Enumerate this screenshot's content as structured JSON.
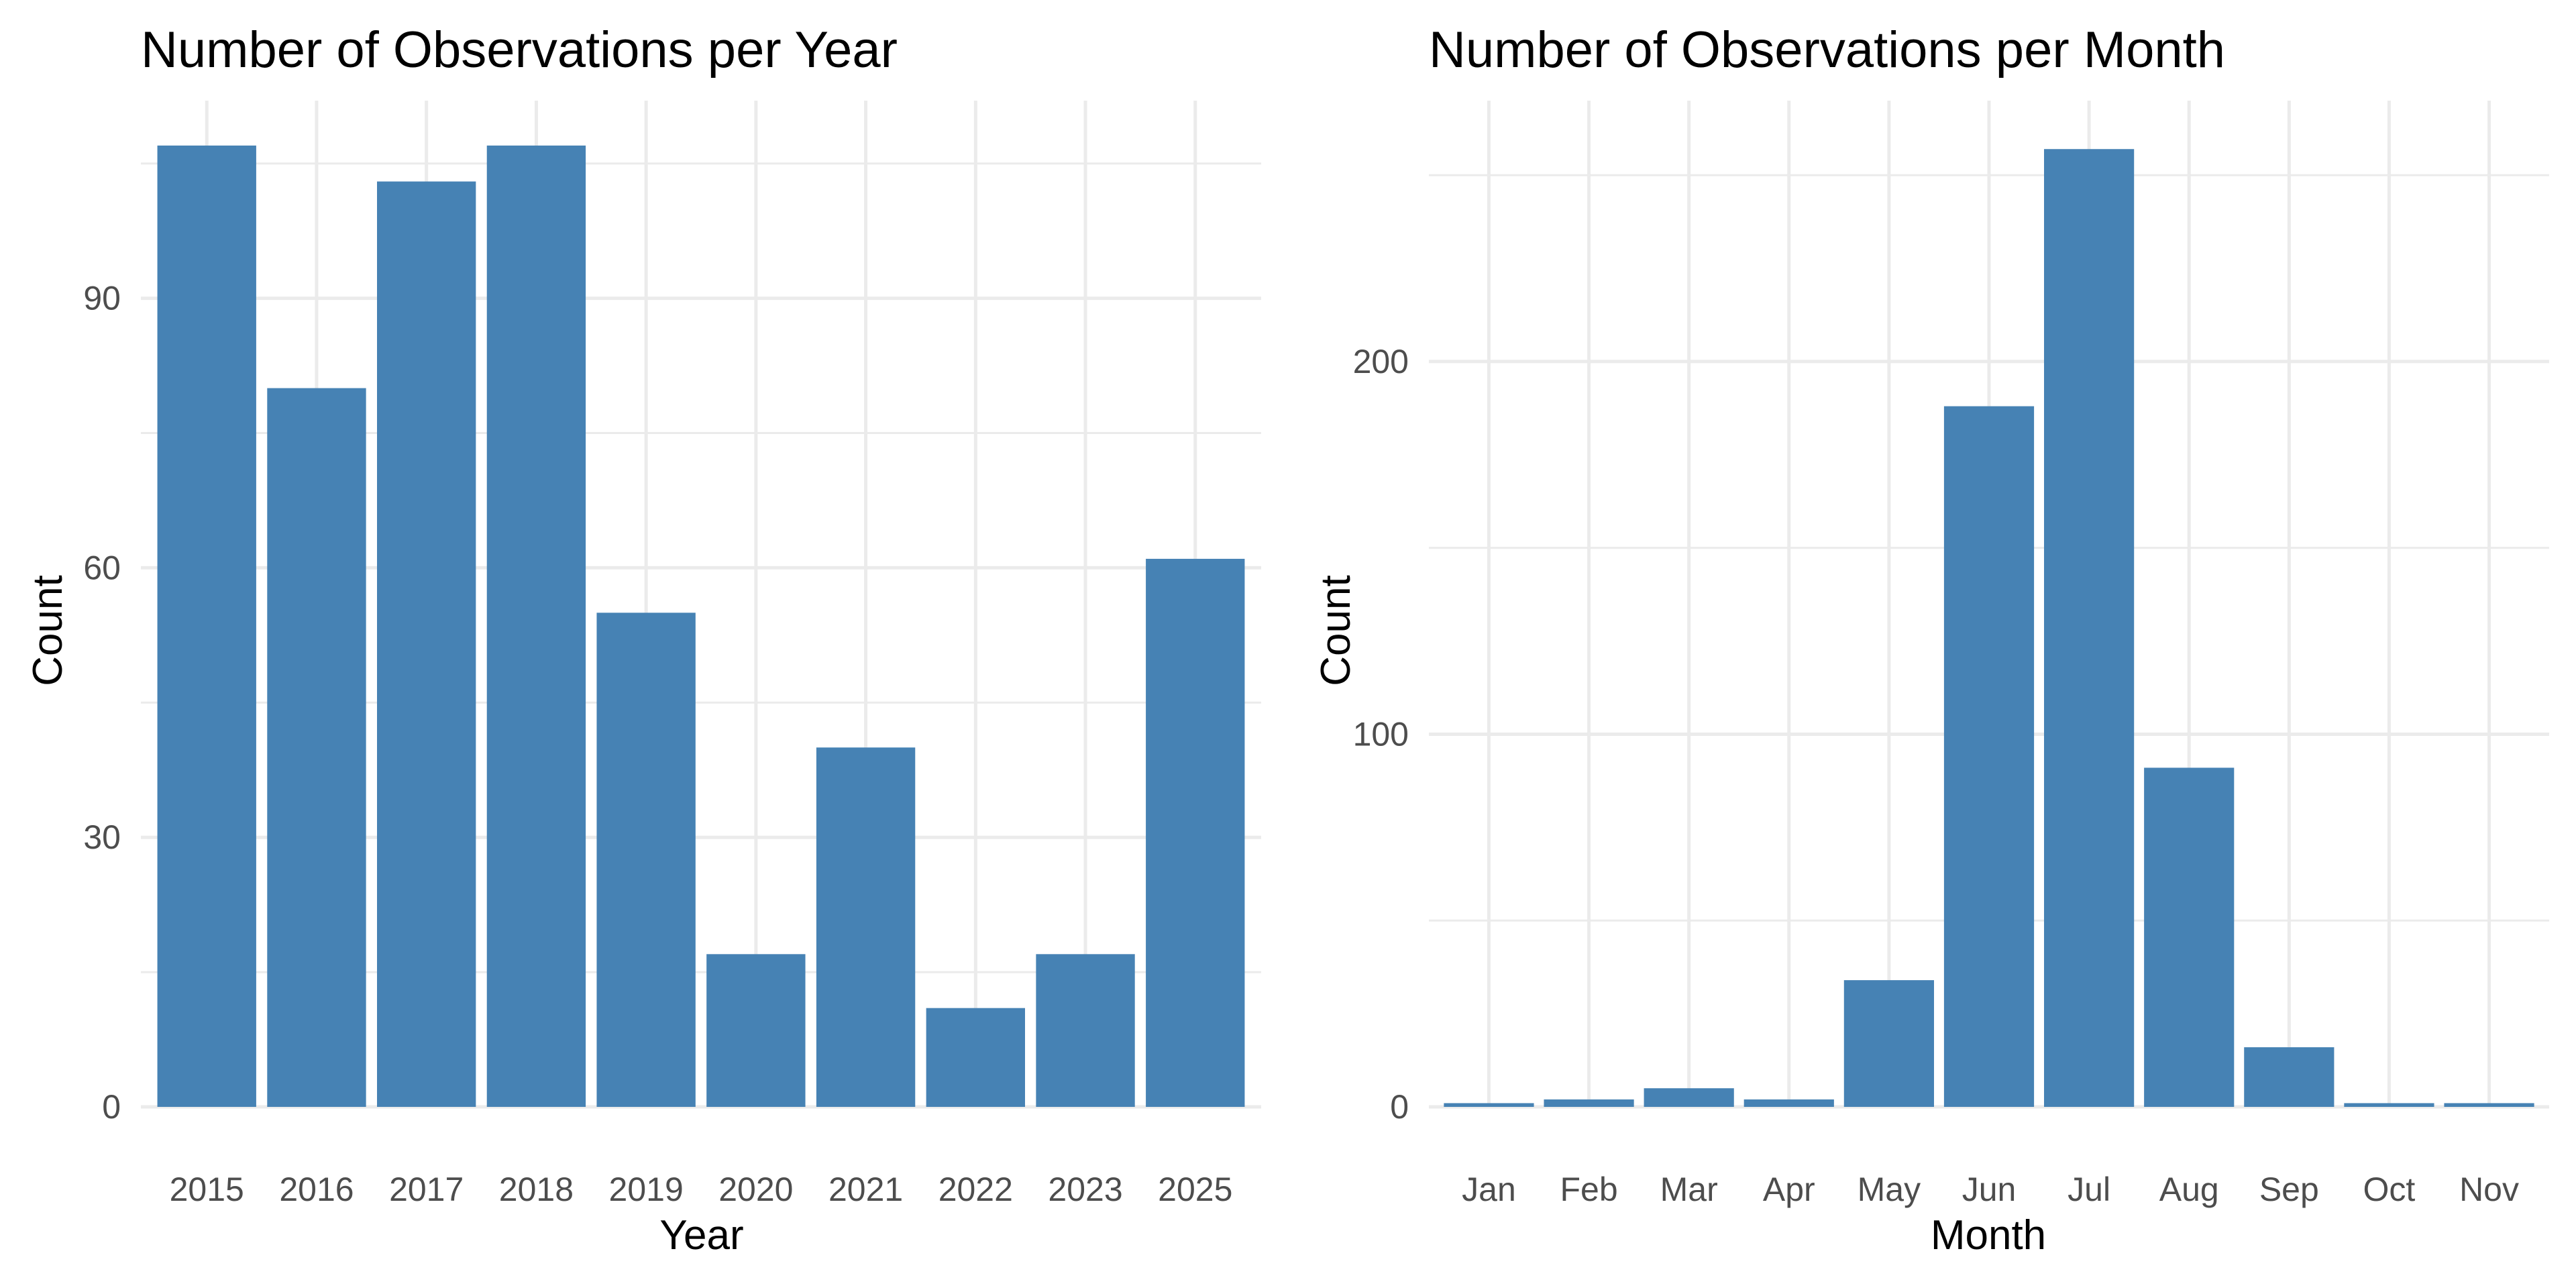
{
  "bar_color": "#4682b4",
  "grid_color": "#ebebeb",
  "chart_data": [
    {
      "type": "bar",
      "title": "Number of Observations per Year",
      "xlabel": "Year",
      "ylabel": "Count",
      "categories": [
        "2015",
        "2016",
        "2017",
        "2018",
        "2019",
        "2020",
        "2021",
        "2022",
        "2023",
        "2025"
      ],
      "values": [
        107,
        80,
        103,
        107,
        55,
        17,
        40,
        11,
        17,
        61
      ],
      "ylim": [
        0,
        112
      ],
      "yticks": [
        0,
        30,
        60,
        90
      ],
      "yticks_minor": [
        15,
        45,
        75,
        105
      ],
      "grid": true,
      "legend": "none"
    },
    {
      "type": "bar",
      "title": "Number of Observations per Month",
      "xlabel": "Month",
      "ylabel": "Count",
      "categories": [
        "Jan",
        "Feb",
        "Mar",
        "Apr",
        "May",
        "Jun",
        "Jul",
        "Aug",
        "Sep",
        "Oct",
        "Nov"
      ],
      "values": [
        1,
        2,
        5,
        2,
        34,
        188,
        257,
        91,
        16,
        1,
        1
      ],
      "ylim": [
        0,
        270
      ],
      "yticks": [
        0,
        100,
        200
      ],
      "yticks_minor": [
        50,
        150,
        250
      ],
      "grid": true,
      "legend": "none"
    }
  ]
}
